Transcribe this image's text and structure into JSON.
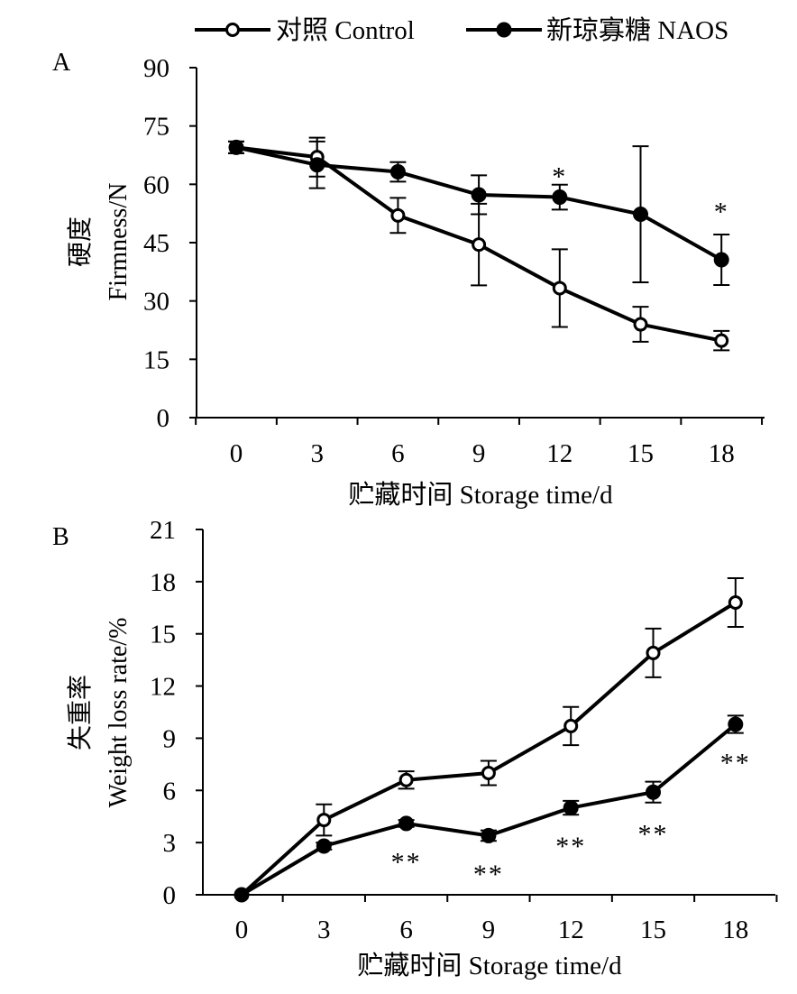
{
  "legend": {
    "control_label": "对照 Control",
    "naos_label": "新琼寡糖 NAOS"
  },
  "chart_data": [
    {
      "type": "line",
      "panel_label": "A",
      "ylabel_cn": "硬度",
      "ylabel_en": "Firmness/N",
      "xlabel": "贮藏时间  Storage time/d",
      "x": [
        0,
        3,
        6,
        9,
        12,
        15,
        18
      ],
      "xlim": [
        0,
        18
      ],
      "ylim": [
        0,
        90
      ],
      "yticks": [
        0,
        15,
        30,
        45,
        60,
        75,
        90
      ],
      "grid": false,
      "legend_position": "top",
      "series": [
        {
          "name": "对照 Control",
          "marker": "open-circle",
          "values": [
            69.5,
            67,
            52,
            44.5,
            33.3,
            24,
            19.8
          ],
          "errors": [
            1.5,
            5,
            4.5,
            10.5,
            10,
            4.5,
            2.5
          ]
        },
        {
          "name": "新琼寡糖 NAOS",
          "marker": "filled-circle",
          "values": [
            69.5,
            65,
            63.2,
            57.3,
            56.7,
            52.3,
            40.6
          ],
          "errors": [
            1.5,
            6,
            2.5,
            5,
            3.2,
            17.5,
            6.5
          ]
        }
      ],
      "annotations": [
        {
          "x": 12,
          "y": 62.5,
          "text": "*"
        },
        {
          "x": 18,
          "y": 53.5,
          "text": "*"
        }
      ]
    },
    {
      "type": "line",
      "panel_label": "B",
      "ylabel_cn": "失重率",
      "ylabel_en": "Weight loss rate/%",
      "xlabel": "贮藏时间  Storage time/d",
      "x": [
        0,
        3,
        6,
        9,
        12,
        15,
        18
      ],
      "xlim": [
        0,
        18
      ],
      "ylim": [
        0,
        21
      ],
      "yticks": [
        0,
        3,
        6,
        9,
        12,
        15,
        18,
        21
      ],
      "grid": false,
      "series": [
        {
          "name": "对照 Control",
          "marker": "open-circle",
          "values": [
            0,
            4.3,
            6.6,
            7,
            9.7,
            13.9,
            16.8
          ],
          "errors": [
            0,
            0.9,
            0.5,
            0.7,
            1.1,
            1.4,
            1.4
          ]
        },
        {
          "name": "新琼寡糖 NAOS",
          "marker": "filled-circle",
          "values": [
            0,
            2.8,
            4.1,
            3.4,
            5,
            5.9,
            9.8
          ],
          "errors": [
            0,
            0.2,
            0.2,
            0.3,
            0.4,
            0.6,
            0.5
          ]
        }
      ],
      "annotations": [
        {
          "x": 6,
          "y": 2.0,
          "text": "**"
        },
        {
          "x": 9,
          "y": 1.3,
          "text": "**"
        },
        {
          "x": 12,
          "y": 2.9,
          "text": "**"
        },
        {
          "x": 15,
          "y": 3.6,
          "text": "**"
        },
        {
          "x": 18,
          "y": 7.7,
          "text": "**"
        }
      ]
    }
  ]
}
